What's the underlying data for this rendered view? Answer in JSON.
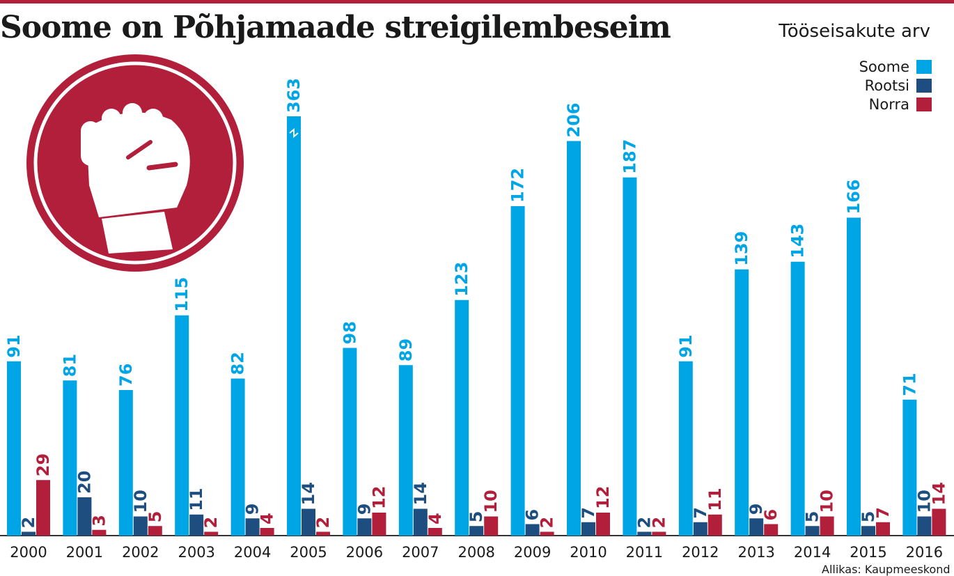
{
  "header": {
    "title": "Soome on Põhjamaade streigilembeseim",
    "subtitle": "Tööseisakute arv"
  },
  "legend": [
    {
      "label": "Soome",
      "color": "#00a5e6"
    },
    {
      "label": "Rootsi",
      "color": "#1d4e7f"
    },
    {
      "label": "Norra",
      "color": "#b21f3b"
    }
  ],
  "source": "Allikas: Kaupmeeskond",
  "logo": {
    "icon": "raised-fist-icon",
    "color": "#b21f3b"
  },
  "chart_data": {
    "type": "bar",
    "categories": [
      "2000",
      "2001",
      "2002",
      "2003",
      "2004",
      "2005",
      "2006",
      "2007",
      "2008",
      "2009",
      "2010",
      "2011",
      "2012",
      "2013",
      "2014",
      "2015",
      "2016"
    ],
    "series": [
      {
        "name": "Soome",
        "color": "#00a5e6",
        "values": [
          91,
          81,
          76,
          115,
          82,
          363,
          98,
          89,
          123,
          172,
          206,
          187,
          91,
          139,
          143,
          166,
          71
        ]
      },
      {
        "name": "Rootsi",
        "color": "#1d4e7f",
        "values": [
          2,
          20,
          10,
          11,
          9,
          14,
          9,
          14,
          5,
          6,
          7,
          2,
          7,
          9,
          5,
          5,
          10
        ]
      },
      {
        "name": "Norra",
        "color": "#b21f3b",
        "values": [
          29,
          3,
          5,
          2,
          4,
          2,
          12,
          4,
          10,
          2,
          12,
          2,
          11,
          6,
          10,
          7,
          14
        ]
      }
    ],
    "axis_break": {
      "series": "Soome",
      "category": "2005"
    },
    "xlabel": "",
    "ylabel": "",
    "grid": false,
    "legend_position": "top-right"
  }
}
